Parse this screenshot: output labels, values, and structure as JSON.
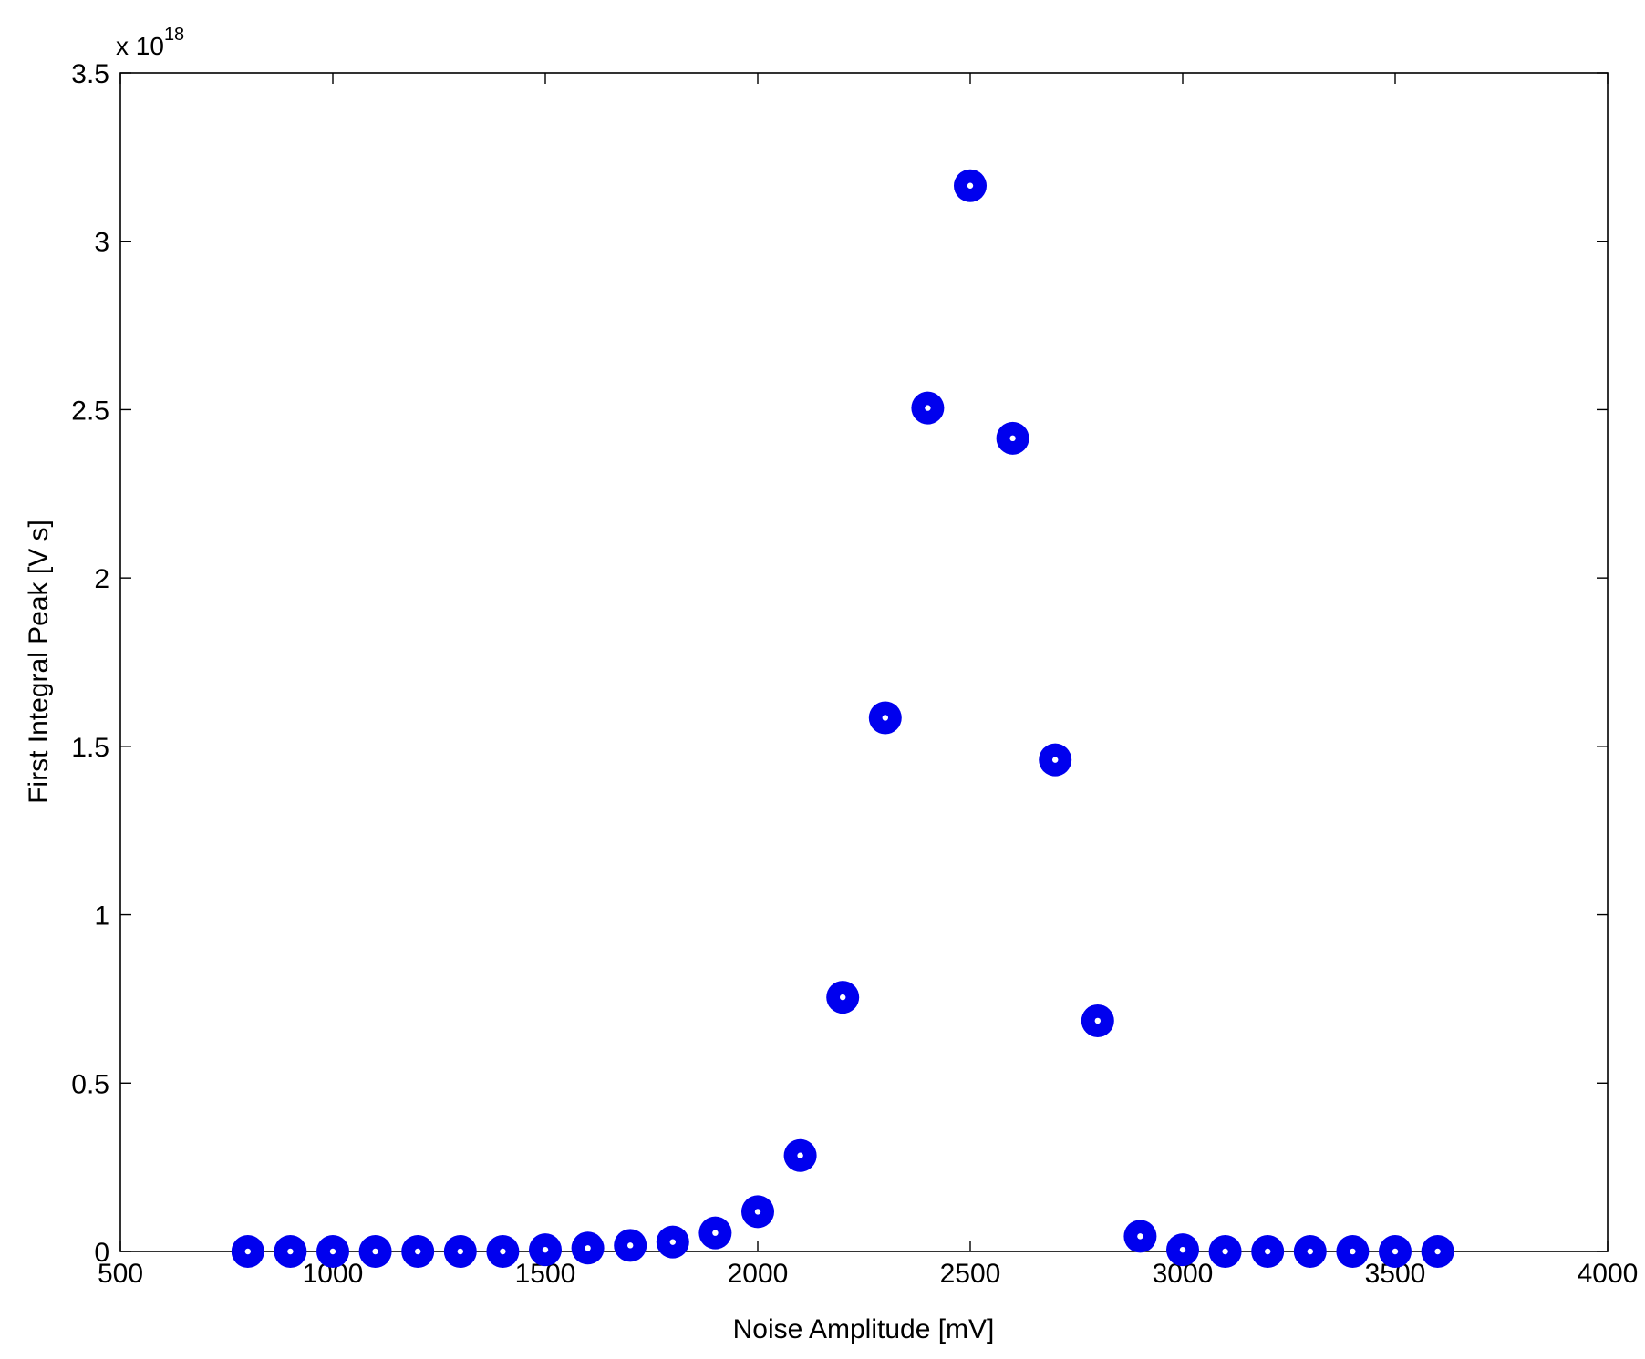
{
  "chart_data": {
    "type": "scatter",
    "xlabel": "Noise Amplitude [mV]",
    "ylabel": "First Integral Peak [V s]",
    "y_multiplier": {
      "base": "x 10",
      "exponent": "18"
    },
    "xlim": [
      500,
      4000
    ],
    "ylim": [
      0,
      3.5
    ],
    "x_ticks": [
      500,
      1000,
      1500,
      2000,
      2500,
      3000,
      3500,
      4000
    ],
    "y_ticks": [
      0,
      0.5,
      1,
      1.5,
      2,
      2.5,
      3,
      3.5
    ],
    "x_tick_labels": [
      "500",
      "1000",
      "1500",
      "2000",
      "2500",
      "3000",
      "3500",
      "4000"
    ],
    "y_tick_labels": [
      "0",
      "0.5",
      "1",
      "1.5",
      "2",
      "2.5",
      "3",
      "3.5"
    ],
    "grid": false,
    "marker_color": "#0000ee",
    "marker_center_color": "#ffffff",
    "series": [
      {
        "x": [
          800,
          900,
          1000,
          1100,
          1200,
          1300,
          1400,
          1500,
          1600,
          1700,
          1800,
          1900,
          2000,
          2100,
          2200,
          2300,
          2400,
          2500,
          2600,
          2700,
          2800,
          2900,
          3000,
          3100,
          3200,
          3300,
          3400,
          3500,
          3600
        ],
        "y": [
          0.0,
          0.0,
          0.0,
          0.0,
          0.0,
          0.0,
          0.0,
          0.005,
          0.01,
          0.018,
          0.028,
          0.055,
          0.118,
          0.285,
          0.755,
          1.585,
          2.505,
          3.165,
          2.415,
          1.46,
          0.685,
          0.045,
          0.005,
          0.0,
          0.0,
          0.0,
          0.0,
          0.0,
          0.0
        ]
      }
    ]
  }
}
